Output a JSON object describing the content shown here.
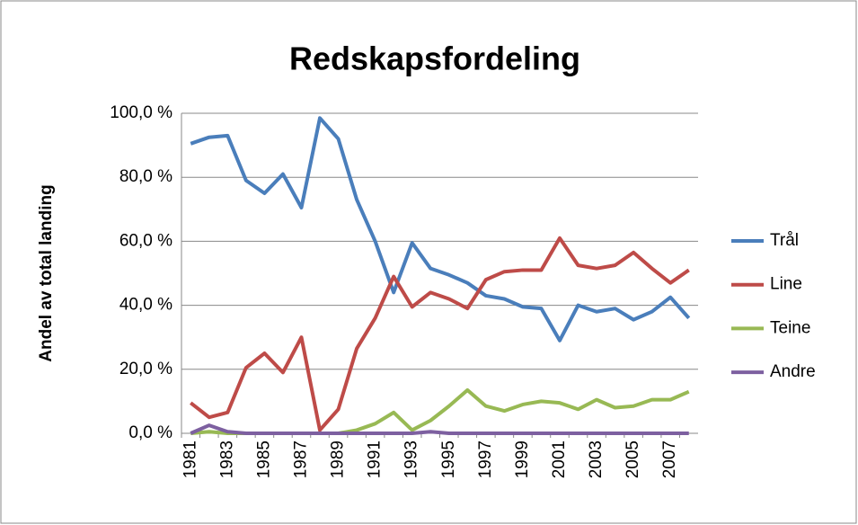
{
  "chart_data": {
    "type": "line",
    "title": "Redskapsfordeling",
    "y_label": "Andel av total landing",
    "categories": [
      "1981",
      null,
      "1983",
      null,
      "1985",
      null,
      "1987",
      null,
      "1989",
      null,
      "1991",
      null,
      "1993",
      null,
      "1995",
      null,
      "1997",
      null,
      "1999",
      null,
      "2001",
      null,
      "2003",
      null,
      "2005",
      null,
      "2007",
      null
    ],
    "series": [
      {
        "name": "Trål",
        "color": "#4a7ebb",
        "values": [
          90.5,
          92.5,
          93,
          79,
          75,
          81,
          70.5,
          98.5,
          92,
          73,
          60,
          44,
          59.5,
          51.5,
          49.5,
          47,
          43,
          42,
          39.5,
          39,
          29,
          40,
          38,
          39,
          35.5,
          38,
          42.5,
          36
        ]
      },
      {
        "name": "Line",
        "color": "#be4b48",
        "values": [
          9.5,
          5,
          6.5,
          20.5,
          25,
          19,
          30,
          1,
          7.5,
          26.5,
          36,
          49,
          39.5,
          44,
          42,
          39,
          48,
          50.5,
          51,
          51,
          61,
          52.5,
          51.5,
          52.5,
          56.5,
          51.5,
          47,
          51
        ]
      },
      {
        "name": "Teine",
        "color": "#98b954",
        "values": [
          0,
          0.5,
          0,
          0,
          0,
          0,
          0,
          0,
          0,
          1,
          3,
          6.5,
          1,
          4,
          8.5,
          13.5,
          8.5,
          7,
          9,
          10,
          9.5,
          7.5,
          10.5,
          8,
          8.5,
          10.5,
          10.5,
          13
        ]
      },
      {
        "name": "Andre",
        "color": "#7d60a0",
        "values": [
          0,
          2.5,
          0.5,
          0,
          0,
          0,
          0,
          0,
          0,
          0,
          0,
          0,
          0,
          0.5,
          0,
          0,
          0,
          0,
          0,
          0,
          0,
          0,
          0,
          0,
          0,
          0,
          0,
          0
        ]
      }
    ],
    "ylim": [
      0,
      100
    ],
    "yticks": [
      {
        "value": 0,
        "label": "0,0 %"
      },
      {
        "value": 20,
        "label": "20,0 %"
      },
      {
        "value": 40,
        "label": "40,0 %"
      },
      {
        "value": 60,
        "label": "60,0 %"
      },
      {
        "value": 80,
        "label": "80,0 %"
      },
      {
        "value": 100,
        "label": "100,0 %"
      }
    ],
    "grid": true,
    "legend": "right"
  }
}
